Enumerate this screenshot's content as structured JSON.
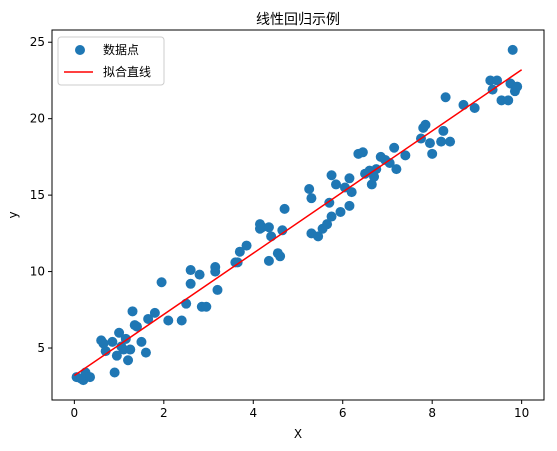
{
  "chart_data": {
    "type": "scatter",
    "title": "线性回归示例",
    "xlabel": "X",
    "ylabel": "y",
    "xlim": [
      -0.5,
      10.5
    ],
    "ylim": [
      1.6,
      25.8
    ],
    "xticks": [
      0,
      2,
      4,
      6,
      8,
      10
    ],
    "yticks": [
      5,
      10,
      15,
      20,
      25
    ],
    "legend_position": "top-left",
    "grid": false,
    "series": [
      {
        "name": "数据点",
        "kind": "scatter",
        "color": "#1f77b4",
        "points": [
          [
            0.05,
            3.1
          ],
          [
            0.15,
            3.0
          ],
          [
            0.2,
            2.9
          ],
          [
            0.25,
            3.4
          ],
          [
            0.35,
            3.1
          ],
          [
            0.6,
            5.5
          ],
          [
            0.65,
            5.3
          ],
          [
            0.7,
            4.8
          ],
          [
            0.85,
            5.4
          ],
          [
            0.9,
            3.4
          ],
          [
            0.95,
            4.5
          ],
          [
            1.0,
            6.0
          ],
          [
            1.05,
            5.1
          ],
          [
            1.1,
            4.9
          ],
          [
            1.15,
            5.6
          ],
          [
            1.2,
            4.2
          ],
          [
            1.25,
            4.9
          ],
          [
            1.3,
            7.4
          ],
          [
            1.35,
            6.5
          ],
          [
            1.4,
            6.4
          ],
          [
            1.5,
            5.4
          ],
          [
            1.6,
            4.7
          ],
          [
            1.65,
            6.9
          ],
          [
            1.8,
            7.3
          ],
          [
            1.95,
            9.3
          ],
          [
            2.1,
            6.8
          ],
          [
            2.4,
            6.8
          ],
          [
            2.5,
            7.9
          ],
          [
            2.6,
            9.2
          ],
          [
            2.6,
            10.1
          ],
          [
            2.8,
            9.8
          ],
          [
            2.85,
            7.7
          ],
          [
            2.95,
            7.7
          ],
          [
            3.15,
            10.0
          ],
          [
            3.15,
            10.3
          ],
          [
            3.2,
            8.8
          ],
          [
            3.6,
            10.6
          ],
          [
            3.65,
            10.6
          ],
          [
            3.7,
            11.3
          ],
          [
            3.85,
            11.7
          ],
          [
            4.15,
            13.1
          ],
          [
            4.15,
            12.8
          ],
          [
            4.2,
            12.9
          ],
          [
            4.35,
            12.9
          ],
          [
            4.35,
            10.7
          ],
          [
            4.4,
            12.3
          ],
          [
            4.55,
            11.2
          ],
          [
            4.6,
            11.0
          ],
          [
            4.65,
            12.7
          ],
          [
            4.7,
            14.1
          ],
          [
            5.25,
            15.4
          ],
          [
            5.3,
            14.8
          ],
          [
            5.3,
            12.5
          ],
          [
            5.45,
            12.3
          ],
          [
            5.55,
            12.8
          ],
          [
            5.65,
            13.1
          ],
          [
            5.7,
            14.5
          ],
          [
            5.75,
            16.3
          ],
          [
            5.75,
            13.6
          ],
          [
            5.85,
            15.7
          ],
          [
            5.95,
            13.9
          ],
          [
            6.05,
            15.5
          ],
          [
            6.15,
            14.3
          ],
          [
            6.15,
            16.1
          ],
          [
            6.2,
            15.2
          ],
          [
            6.35,
            17.7
          ],
          [
            6.45,
            17.8
          ],
          [
            6.5,
            16.4
          ],
          [
            6.6,
            16.6
          ],
          [
            6.65,
            15.7
          ],
          [
            6.7,
            16.2
          ],
          [
            6.75,
            16.7
          ],
          [
            6.85,
            17.5
          ],
          [
            6.95,
            17.3
          ],
          [
            7.05,
            17.1
          ],
          [
            7.15,
            18.1
          ],
          [
            7.2,
            16.7
          ],
          [
            7.4,
            17.6
          ],
          [
            7.75,
            18.7
          ],
          [
            7.8,
            19.4
          ],
          [
            7.85,
            19.6
          ],
          [
            7.95,
            18.4
          ],
          [
            8.0,
            17.7
          ],
          [
            8.2,
            18.5
          ],
          [
            8.25,
            19.2
          ],
          [
            8.3,
            21.4
          ],
          [
            8.4,
            18.5
          ],
          [
            8.7,
            20.9
          ],
          [
            8.95,
            20.7
          ],
          [
            9.3,
            22.5
          ],
          [
            9.35,
            21.9
          ],
          [
            9.45,
            22.5
          ],
          [
            9.55,
            21.2
          ],
          [
            9.7,
            21.2
          ],
          [
            9.75,
            22.3
          ],
          [
            9.8,
            24.5
          ],
          [
            9.85,
            21.8
          ],
          [
            9.9,
            22.1
          ]
        ]
      },
      {
        "name": "拟合直线",
        "kind": "line",
        "color": "#ff0000",
        "points": [
          [
            0,
            3.2
          ],
          [
            10,
            23.2
          ]
        ]
      }
    ]
  }
}
